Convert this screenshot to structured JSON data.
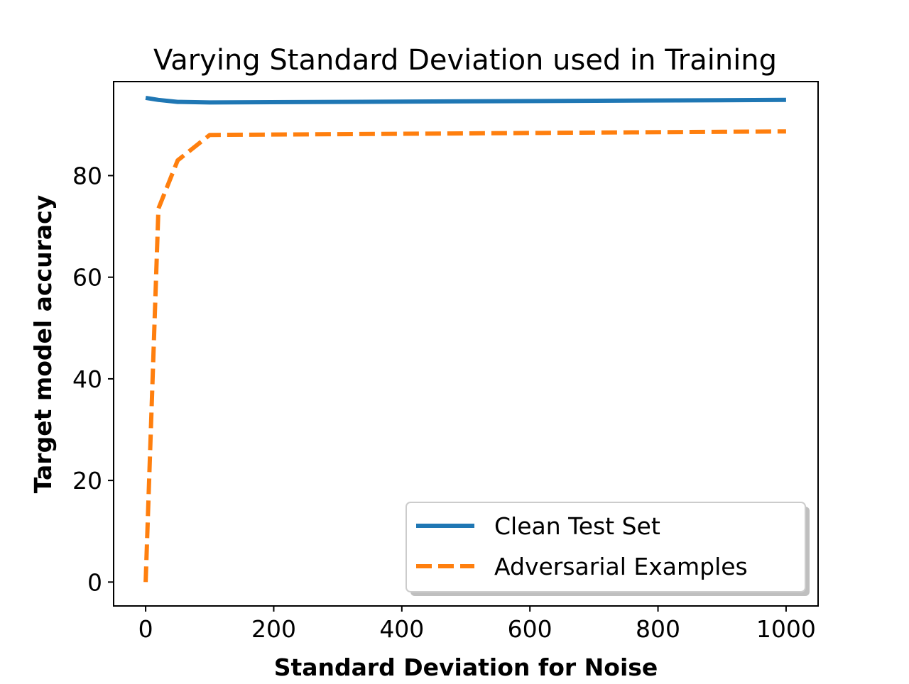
{
  "chart_data": {
    "type": "line",
    "title": "Varying Standard Deviation used in Training",
    "xlabel": "Standard Deviation for Noise",
    "ylabel": "Target model accuracy",
    "xlim": [
      -50,
      1050
    ],
    "ylim": [
      -4.7,
      98.5
    ],
    "xticks": [
      0,
      200,
      400,
      600,
      800,
      1000
    ],
    "yticks": [
      0,
      20,
      40,
      60,
      80
    ],
    "grid": false,
    "legend_position": "lower-right",
    "series": [
      {
        "name": "Clean Test Set",
        "color": "#1f77b4",
        "style": "solid",
        "x": [
          0,
          20,
          50,
          100,
          1000
        ],
        "y": [
          95.3,
          94.9,
          94.5,
          94.4,
          94.9
        ]
      },
      {
        "name": "Adversarial Examples",
        "color": "#ff7f0e",
        "style": "dashed",
        "x": [
          0,
          20,
          50,
          100,
          1000
        ],
        "y": [
          0,
          73.5,
          83.0,
          88.0,
          88.7
        ]
      }
    ]
  }
}
